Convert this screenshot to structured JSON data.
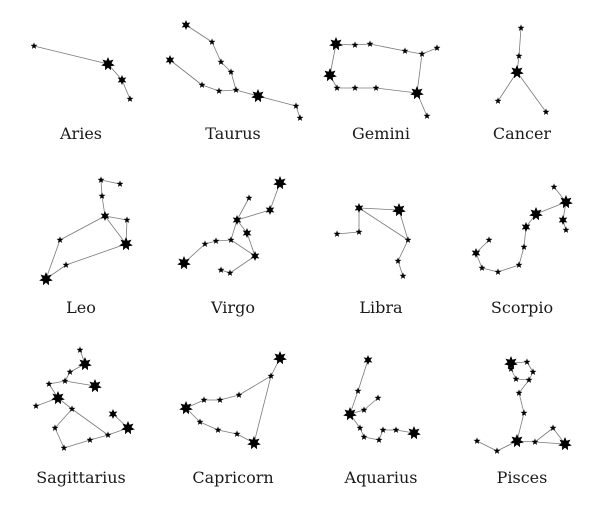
{
  "colors": {
    "background": "#ffffff",
    "star": "#000000",
    "line": "#7a7a7a",
    "label": "#1a1a1a"
  },
  "constellations": [
    {
      "name": "Aries",
      "stars": [
        [
          34,
          46,
          1
        ],
        [
          108,
          64,
          3
        ],
        [
          122,
          80,
          2
        ],
        [
          130,
          99,
          1
        ]
      ],
      "links": [
        [
          0,
          1
        ],
        [
          1,
          2
        ],
        [
          2,
          3
        ]
      ]
    },
    {
      "name": "Taurus",
      "stars": [
        [
          186,
          25,
          2
        ],
        [
          212,
          42,
          1
        ],
        [
          170,
          60,
          2
        ],
        [
          221,
          62,
          1
        ],
        [
          231,
          72,
          1
        ],
        [
          202,
          85,
          1
        ],
        [
          219,
          91,
          1
        ],
        [
          236,
          90,
          1
        ],
        [
          258,
          96,
          3
        ],
        [
          296,
          106,
          1
        ],
        [
          300,
          118,
          1
        ]
      ],
      "links": [
        [
          0,
          1
        ],
        [
          1,
          3
        ],
        [
          3,
          4
        ],
        [
          4,
          7
        ],
        [
          2,
          5
        ],
        [
          5,
          6
        ],
        [
          6,
          7
        ],
        [
          7,
          8
        ],
        [
          8,
          9
        ],
        [
          9,
          10
        ]
      ]
    },
    {
      "name": "Gemini",
      "stars": [
        [
          336,
          44,
          3
        ],
        [
          355,
          45,
          1
        ],
        [
          370,
          44,
          1
        ],
        [
          405,
          51,
          1
        ],
        [
          422,
          54,
          1
        ],
        [
          437,
          48,
          1
        ],
        [
          330,
          75,
          3
        ],
        [
          337,
          88,
          1
        ],
        [
          355,
          88,
          1
        ],
        [
          376,
          88,
          1
        ],
        [
          417,
          93,
          3
        ],
        [
          427,
          116,
          1
        ]
      ],
      "links": [
        [
          0,
          1
        ],
        [
          1,
          2
        ],
        [
          2,
          3
        ],
        [
          3,
          4
        ],
        [
          4,
          5
        ],
        [
          0,
          6
        ],
        [
          6,
          7
        ],
        [
          7,
          8
        ],
        [
          8,
          9
        ],
        [
          9,
          10
        ],
        [
          10,
          11
        ],
        [
          4,
          10
        ]
      ]
    },
    {
      "name": "Cancer",
      "stars": [
        [
          521,
          28,
          1
        ],
        [
          519,
          56,
          1
        ],
        [
          517,
          72,
          3
        ],
        [
          498,
          101,
          1
        ],
        [
          546,
          112,
          1
        ]
      ],
      "links": [
        [
          0,
          1
        ],
        [
          1,
          2
        ],
        [
          2,
          3
        ],
        [
          2,
          4
        ]
      ]
    },
    {
      "name": "Leo",
      "stars": [
        [
          101,
          180,
          1
        ],
        [
          120,
          184,
          1
        ],
        [
          102,
          196,
          1
        ],
        [
          105,
          216,
          2
        ],
        [
          127,
          220,
          1
        ],
        [
          126,
          244,
          3
        ],
        [
          60,
          240,
          1
        ],
        [
          66,
          265,
          1
        ],
        [
          46,
          279,
          3
        ]
      ],
      "links": [
        [
          0,
          1
        ],
        [
          0,
          2
        ],
        [
          2,
          3
        ],
        [
          3,
          4
        ],
        [
          4,
          5
        ],
        [
          3,
          6
        ],
        [
          6,
          8
        ],
        [
          8,
          7
        ],
        [
          7,
          5
        ],
        [
          3,
          5
        ]
      ]
    },
    {
      "name": "Virgo",
      "stars": [
        [
          280,
          183,
          3
        ],
        [
          270,
          210,
          2
        ],
        [
          249,
          198,
          1
        ],
        [
          237,
          220,
          2
        ],
        [
          231,
          240,
          1
        ],
        [
          216,
          241,
          1
        ],
        [
          205,
          244,
          1
        ],
        [
          184,
          263,
          3
        ],
        [
          247,
          233,
          2
        ],
        [
          255,
          256,
          2
        ],
        [
          230,
          273,
          1
        ],
        [
          221,
          270,
          1
        ]
      ],
      "links": [
        [
          0,
          1
        ],
        [
          1,
          3
        ],
        [
          2,
          3
        ],
        [
          3,
          4
        ],
        [
          4,
          5
        ],
        [
          5,
          6
        ],
        [
          6,
          7
        ],
        [
          3,
          8
        ],
        [
          8,
          9
        ],
        [
          4,
          9
        ],
        [
          9,
          10
        ],
        [
          10,
          11
        ]
      ]
    },
    {
      "name": "Libra",
      "stars": [
        [
          359,
          208,
          2
        ],
        [
          399,
          210,
          3
        ],
        [
          408,
          240,
          1
        ],
        [
          398,
          261,
          1
        ],
        [
          403,
          276,
          1
        ],
        [
          359,
          232,
          1
        ],
        [
          337,
          234,
          1
        ]
      ],
      "links": [
        [
          0,
          1
        ],
        [
          1,
          2
        ],
        [
          0,
          2
        ],
        [
          2,
          3
        ],
        [
          3,
          4
        ],
        [
          0,
          5
        ],
        [
          5,
          6
        ]
      ]
    },
    {
      "name": "Scorpio",
      "stars": [
        [
          554,
          187,
          1
        ],
        [
          566,
          202,
          3
        ],
        [
          563,
          220,
          2
        ],
        [
          566,
          230,
          1
        ],
        [
          536,
          214,
          3
        ],
        [
          526,
          227,
          2
        ],
        [
          524,
          247,
          1
        ],
        [
          519,
          265,
          1
        ],
        [
          498,
          272,
          1
        ],
        [
          482,
          268,
          1
        ],
        [
          476,
          253,
          2
        ],
        [
          489,
          240,
          1
        ]
      ],
      "links": [
        [
          0,
          1
        ],
        [
          1,
          2
        ],
        [
          2,
          3
        ],
        [
          1,
          4
        ],
        [
          4,
          5
        ],
        [
          5,
          6
        ],
        [
          6,
          7
        ],
        [
          7,
          8
        ],
        [
          8,
          9
        ],
        [
          9,
          10
        ],
        [
          10,
          11
        ]
      ]
    },
    {
      "name": "Sagittarius",
      "stars": [
        [
          80,
          350,
          1
        ],
        [
          85,
          364,
          3
        ],
        [
          70,
          372,
          1
        ],
        [
          65,
          381,
          1
        ],
        [
          95,
          386,
          3
        ],
        [
          49,
          384,
          1
        ],
        [
          58,
          398,
          3
        ],
        [
          36,
          406,
          1
        ],
        [
          72,
          409,
          1
        ],
        [
          55,
          428,
          1
        ],
        [
          64,
          448,
          1
        ],
        [
          90,
          440,
          1
        ],
        [
          108,
          435,
          1
        ],
        [
          128,
          428,
          3
        ],
        [
          113,
          414,
          2
        ]
      ],
      "links": [
        [
          0,
          1
        ],
        [
          1,
          2
        ],
        [
          2,
          3
        ],
        [
          3,
          4
        ],
        [
          3,
          5
        ],
        [
          5,
          6
        ],
        [
          6,
          7
        ],
        [
          6,
          8
        ],
        [
          8,
          9
        ],
        [
          9,
          10
        ],
        [
          10,
          11
        ],
        [
          11,
          12
        ],
        [
          12,
          13
        ],
        [
          13,
          14
        ],
        [
          8,
          12
        ]
      ]
    },
    {
      "name": "Capricorn",
      "stars": [
        [
          280,
          358,
          3
        ],
        [
          271,
          376,
          1
        ],
        [
          239,
          395,
          1
        ],
        [
          220,
          400,
          1
        ],
        [
          204,
          400,
          1
        ],
        [
          186,
          408,
          3
        ],
        [
          200,
          422,
          1
        ],
        [
          218,
          430,
          1
        ],
        [
          237,
          434,
          1
        ],
        [
          254,
          443,
          3
        ]
      ],
      "links": [
        [
          0,
          1
        ],
        [
          1,
          2
        ],
        [
          2,
          3
        ],
        [
          3,
          4
        ],
        [
          4,
          5
        ],
        [
          5,
          6
        ],
        [
          6,
          7
        ],
        [
          7,
          8
        ],
        [
          8,
          9
        ],
        [
          9,
          1
        ]
      ]
    },
    {
      "name": "Aquarius",
      "stars": [
        [
          368,
          360,
          2
        ],
        [
          358,
          391,
          1
        ],
        [
          350,
          414,
          3
        ],
        [
          364,
          410,
          1
        ],
        [
          378,
          398,
          1
        ],
        [
          360,
          428,
          1
        ],
        [
          364,
          437,
          1
        ],
        [
          379,
          440,
          1
        ],
        [
          383,
          430,
          1
        ],
        [
          396,
          430,
          1
        ],
        [
          414,
          433,
          3
        ]
      ],
      "links": [
        [
          0,
          1
        ],
        [
          1,
          2
        ],
        [
          2,
          3
        ],
        [
          3,
          4
        ],
        [
          2,
          5
        ],
        [
          5,
          6
        ],
        [
          6,
          7
        ],
        [
          7,
          8
        ],
        [
          8,
          9
        ],
        [
          9,
          10
        ]
      ]
    },
    {
      "name": "Pisces",
      "stars": [
        [
          511,
          363,
          3
        ],
        [
          527,
          362,
          1
        ],
        [
          533,
          372,
          1
        ],
        [
          529,
          380,
          1
        ],
        [
          516,
          379,
          1
        ],
        [
          511,
          369,
          1
        ],
        [
          519,
          393,
          1
        ],
        [
          524,
          413,
          1
        ],
        [
          517,
          441,
          3
        ],
        [
          497,
          451,
          1
        ],
        [
          477,
          441,
          1
        ],
        [
          535,
          442,
          1
        ],
        [
          553,
          428,
          1
        ],
        [
          565,
          444,
          3
        ]
      ],
      "links": [
        [
          0,
          1
        ],
        [
          1,
          2
        ],
        [
          2,
          3
        ],
        [
          3,
          4
        ],
        [
          4,
          5
        ],
        [
          5,
          0
        ],
        [
          3,
          6
        ],
        [
          6,
          7
        ],
        [
          7,
          8
        ],
        [
          8,
          9
        ],
        [
          9,
          10
        ],
        [
          8,
          11
        ],
        [
          11,
          12
        ],
        [
          12,
          13
        ],
        [
          11,
          13
        ]
      ]
    }
  ],
  "labels": [
    [
      "Aries",
      81,
      134
    ],
    [
      "Taurus",
      233,
      134
    ],
    [
      "Gemini",
      381,
      134
    ],
    [
      "Cancer",
      522,
      134
    ],
    [
      "Leo",
      81,
      308
    ],
    [
      "Virgo",
      233,
      308
    ],
    [
      "Libra",
      381,
      308
    ],
    [
      "Scorpio",
      522,
      308
    ],
    [
      "Sagittarius",
      81,
      478
    ],
    [
      "Capricorn",
      233,
      478
    ],
    [
      "Aquarius",
      381,
      478
    ],
    [
      "Pisces",
      522,
      478
    ]
  ]
}
